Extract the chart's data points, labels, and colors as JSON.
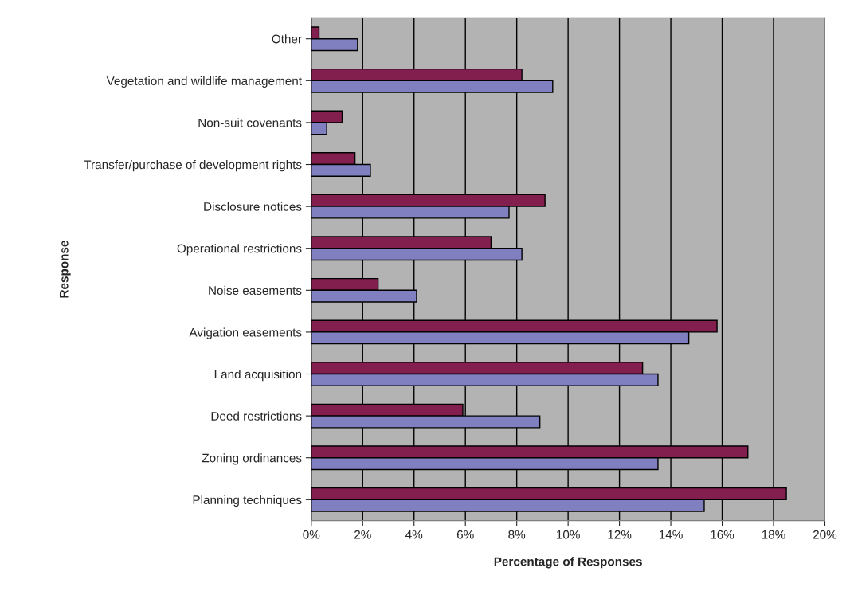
{
  "chart_data": {
    "type": "bar",
    "orientation": "horizontal",
    "xlabel": "Percentage of Responses",
    "ylabel": "Response",
    "categories": [
      "Other",
      "Vegetation and wildlife management",
      "Non-suit covenants",
      "Transfer/purchase of development rights",
      "Disclosure notices",
      "Operational restrictions",
      "Noise easements",
      "Avigation easements",
      "Land acquisition",
      "Deed restrictions",
      "Zoning ordinances",
      "Planning techniques"
    ],
    "series": [
      {
        "color": "#821f4f",
        "values": [
          0.3,
          8.2,
          1.2,
          1.7,
          9.1,
          7.0,
          2.6,
          15.8,
          12.9,
          5.9,
          17.0,
          18.5
        ]
      },
      {
        "color": "#8080c0",
        "values": [
          1.8,
          9.4,
          0.6,
          2.3,
          7.7,
          8.2,
          4.1,
          14.7,
          13.5,
          8.9,
          13.5,
          15.3
        ]
      }
    ],
    "xlim": [
      0,
      20
    ],
    "xticks": [
      {
        "value": 0,
        "label": "0%"
      },
      {
        "value": 2,
        "label": "2%"
      },
      {
        "value": 4,
        "label": "4%"
      },
      {
        "value": 6,
        "label": "6%"
      },
      {
        "value": 8,
        "label": "8%"
      },
      {
        "value": 10,
        "label": "10%"
      },
      {
        "value": 12,
        "label": "12%"
      },
      {
        "value": 14,
        "label": "14%"
      },
      {
        "value": 16,
        "label": "16%"
      },
      {
        "value": 18,
        "label": "18%"
      },
      {
        "value": 20,
        "label": "20%"
      }
    ],
    "grid": "x"
  }
}
